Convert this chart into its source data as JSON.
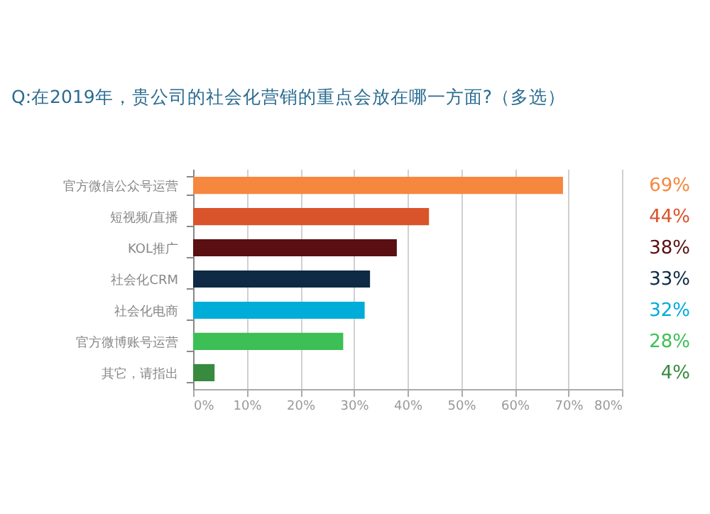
{
  "chart_data": {
    "type": "bar",
    "orientation": "horizontal",
    "title": "Q:在2019年，贵公司的社会化营销的重点会放在哪一方面?（多选）",
    "categories": [
      "官方微信公众号运营",
      "短视频/直播",
      "KOL推广",
      "社会化CRM",
      "社会化电商",
      "官方微博账号运营",
      "其它，请指出"
    ],
    "values": [
      69,
      44,
      38,
      33,
      32,
      28,
      4
    ],
    "colors": [
      "#f5873f",
      "#d9542a",
      "#5a0f12",
      "#0e2a44",
      "#00acd8",
      "#3cbf55",
      "#378a3e"
    ],
    "value_labels": [
      "69%",
      "44%",
      "38%",
      "33%",
      "32%",
      "28%",
      "4%"
    ],
    "xlim": [
      0,
      80
    ],
    "xticks": [
      {
        "value": 0,
        "label": "0%"
      },
      {
        "value": 10,
        "label": "10%"
      },
      {
        "value": 20,
        "label": "20%"
      },
      {
        "value": 30,
        "label": "30%"
      },
      {
        "value": 40,
        "label": "40%"
      },
      {
        "value": 50,
        "label": "50%"
      },
      {
        "value": 60,
        "label": "60%"
      },
      {
        "value": 70,
        "label": "70%"
      },
      {
        "value": 80,
        "label": "80%"
      }
    ],
    "grid": "x"
  }
}
